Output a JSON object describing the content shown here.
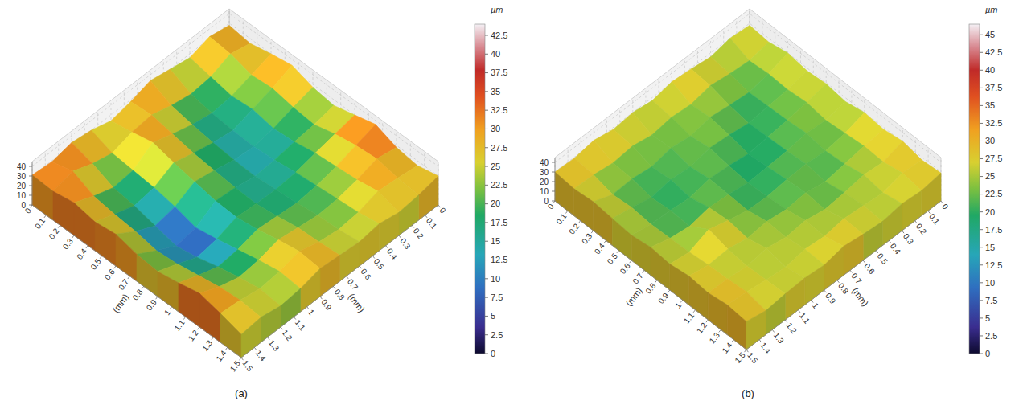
{
  "chart_data": [
    {
      "type": "surface",
      "panel_label": "(a)",
      "xlabel": "(mm)",
      "ylabel": "(mm)",
      "x": [
        0,
        0.15,
        0.3,
        0.45,
        0.6,
        0.75,
        0.9,
        1.05,
        1.2,
        1.35,
        1.5
      ],
      "y": [
        0,
        0.15,
        0.3,
        0.45,
        0.6,
        0.75,
        0.9,
        1.05,
        1.2,
        1.35,
        1.5
      ],
      "z": [
        [
          28,
          32,
          26,
          30,
          34,
          28,
          24,
          30,
          33,
          29,
          31
        ],
        [
          25,
          30,
          22,
          20,
          24,
          30,
          28,
          22,
          27,
          35,
          30
        ],
        [
          30,
          24,
          18,
          16,
          20,
          26,
          33,
          20,
          18,
          25,
          34
        ],
        [
          34,
          26,
          20,
          14,
          17,
          22,
          28,
          18,
          15,
          22,
          30
        ],
        [
          27,
          22,
          16,
          13,
          15,
          20,
          24,
          14,
          10,
          20,
          33
        ],
        [
          24,
          20,
          18,
          15,
          14,
          18,
          20,
          8,
          5,
          16,
          28
        ],
        [
          30,
          26,
          22,
          18,
          16,
          17,
          19,
          12,
          9,
          18,
          26
        ],
        [
          36,
          30,
          24,
          20,
          18,
          20,
          22,
          17,
          15,
          22,
          30
        ],
        [
          28,
          32,
          26,
          22,
          21,
          24,
          27,
          22,
          20,
          26,
          35
        ],
        [
          25,
          28,
          30,
          24,
          22,
          25,
          31,
          26,
          24,
          28,
          30
        ],
        [
          30,
          26,
          24,
          28,
          25,
          27,
          29,
          24,
          22,
          26,
          24
        ]
      ],
      "xlim": [
        0,
        1.5
      ],
      "ylim": [
        0,
        1.5
      ],
      "zlim": [
        0,
        45
      ],
      "xticks": [
        0,
        0.1,
        0.2,
        0.3,
        0.4,
        0.5,
        0.6,
        0.7,
        0.8,
        0.9,
        1,
        1.1,
        1.2,
        1.3,
        1.4,
        1.5
      ],
      "yticks": [
        0,
        0.1,
        0.2,
        0.3,
        0.4,
        0.5,
        0.6,
        0.7,
        0.8,
        0.9,
        1,
        1.1,
        1.2,
        1.3,
        1.4,
        1.5
      ],
      "zticks": [
        0,
        10,
        20,
        30,
        40
      ],
      "grid": true,
      "colorbar": {
        "label": "µm",
        "range": [
          0,
          44
        ],
        "ticks": [
          0,
          2.5,
          5,
          7.5,
          10,
          12.5,
          15,
          17.5,
          20,
          22.5,
          25,
          27.5,
          30,
          32.5,
          35,
          37.5,
          40,
          42.5
        ]
      }
    },
    {
      "type": "surface",
      "panel_label": "(b)",
      "xlabel": "(mm)",
      "ylabel": "(mm)",
      "x": [
        0,
        0.15,
        0.3,
        0.45,
        0.6,
        0.75,
        0.9,
        1.05,
        1.2,
        1.35,
        1.5
      ],
      "y": [
        0,
        0.15,
        0.3,
        0.45,
        0.6,
        0.75,
        0.9,
        1.05,
        1.2,
        1.35,
        1.5
      ],
      "z": [
        [
          28,
          30,
          26,
          29,
          31,
          27,
          30,
          28,
          32,
          29,
          30
        ],
        [
          26,
          22,
          24,
          27,
          23,
          25,
          22,
          26,
          24,
          27,
          28
        ],
        [
          30,
          24,
          20,
          22,
          25,
          21,
          24,
          20,
          23,
          22,
          30
        ],
        [
          27,
          23,
          21,
          19,
          22,
          24,
          20,
          22,
          19,
          24,
          28
        ],
        [
          29,
          25,
          22,
          20,
          18,
          21,
          23,
          19,
          21,
          22,
          26
        ],
        [
          26,
          22,
          24,
          21,
          20,
          19,
          22,
          24,
          20,
          23,
          29
        ],
        [
          30,
          24,
          21,
          23,
          22,
          20,
          21,
          26,
          32,
          24,
          27
        ],
        [
          28,
          26,
          23,
          20,
          24,
          22,
          25,
          23,
          27,
          26,
          30
        ],
        [
          31,
          25,
          27,
          24,
          22,
          26,
          24,
          28,
          25,
          27,
          28
        ],
        [
          27,
          29,
          24,
          26,
          28,
          25,
          27,
          24,
          26,
          29,
          31
        ],
        [
          29,
          26,
          28,
          25,
          27,
          30,
          26,
          28,
          27,
          25,
          29
        ]
      ],
      "xlim": [
        0,
        1.5
      ],
      "ylim": [
        0,
        1.5
      ],
      "zlim": [
        0,
        45
      ],
      "xticks": [
        0,
        0.1,
        0.2,
        0.3,
        0.4,
        0.5,
        0.6,
        0.7,
        0.8,
        0.9,
        1,
        1.1,
        1.2,
        1.3,
        1.4,
        1.5
      ],
      "yticks": [
        0,
        0.1,
        0.2,
        0.3,
        0.4,
        0.5,
        0.6,
        0.7,
        0.8,
        0.9,
        1,
        1.1,
        1.2,
        1.3,
        1.4,
        1.5
      ],
      "zticks": [
        0,
        10,
        20,
        30,
        40
      ],
      "grid": true,
      "colorbar": {
        "label": "µm",
        "range": [
          0,
          46.5
        ],
        "ticks": [
          0,
          2.5,
          5,
          7.5,
          10,
          12.5,
          15,
          17.5,
          20,
          22.5,
          25,
          27.5,
          30,
          32.5,
          35,
          37.5,
          40,
          42.5,
          45
        ]
      }
    }
  ]
}
